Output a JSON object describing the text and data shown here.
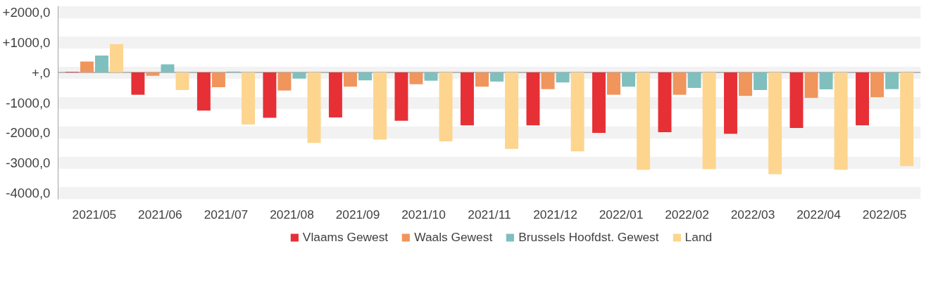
{
  "chart_data": {
    "type": "bar",
    "categories": [
      "2021/05",
      "2021/06",
      "2021/07",
      "2021/08",
      "2021/09",
      "2021/10",
      "2021/11",
      "2021/12",
      "2022/01",
      "2022/02",
      "2022/03",
      "2022/04",
      "2022/05"
    ],
    "series": [
      {
        "name": "Vlaams Gewest",
        "color": "#e63036",
        "values": [
          20,
          -740,
          -1260,
          -1500,
          -1490,
          -1600,
          -1750,
          -1750,
          -2000,
          -1980,
          -2030,
          -1840,
          -1750
        ]
      },
      {
        "name": "Waals Gewest",
        "color": "#f0955c",
        "values": [
          360,
          -110,
          -490,
          -600,
          -470,
          -390,
          -470,
          -550,
          -740,
          -740,
          -780,
          -840,
          -820
        ]
      },
      {
        "name": "Brussels Hoofdst. Gewest",
        "color": "#7fbfbe",
        "values": [
          560,
          270,
          30,
          -200,
          -260,
          -270,
          -300,
          -330,
          -470,
          -510,
          -580,
          -560,
          -550
        ]
      },
      {
        "name": "Land",
        "color": "#fdd58e",
        "values": [
          940,
          -580,
          -1720,
          -2330,
          -2220,
          -2280,
          -2530,
          -2610,
          -3220,
          -3200,
          -3370,
          -3220,
          -3100
        ]
      }
    ],
    "ylim": [
      -4200,
      2200
    ],
    "yticks": [
      {
        "value": -4000,
        "label": "-4000,0"
      },
      {
        "value": -3000,
        "label": "-3000,0"
      },
      {
        "value": -2000,
        "label": "-2000,0"
      },
      {
        "value": -1000,
        "label": "-1000,0"
      },
      {
        "value": 0,
        "label": "+,0"
      },
      {
        "value": 1000,
        "label": "+1000,0"
      },
      {
        "value": 2000,
        "label": "+2000,0"
      }
    ],
    "grid": "y",
    "legend": "bottom"
  }
}
